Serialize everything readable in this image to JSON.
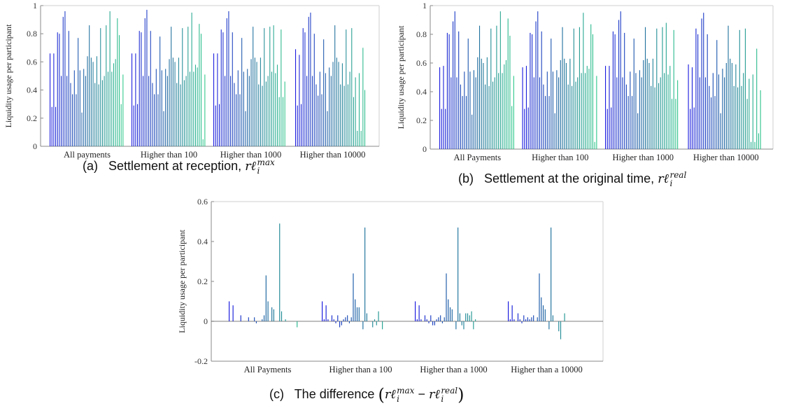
{
  "chart_data": [
    {
      "id": "a",
      "type": "bar",
      "ylabel": "Liquidity usage per participant",
      "ylim": [
        0,
        1
      ],
      "yticks": [
        0,
        0.2,
        0.4,
        0.6,
        0.8,
        1
      ],
      "ytick_labels": [
        "0",
        "0.2",
        "0.4",
        "0.6",
        "0.8",
        "1"
      ],
      "categories": [
        "All payments",
        "Higher than 100",
        "Higher than 1000",
        "Higher than 10000"
      ],
      "groups": [
        [
          0.66,
          0.28,
          0.66,
          0.28,
          0.81,
          0.8,
          0.5,
          0.92,
          0.96,
          0.5,
          0.82,
          0.45,
          0.37,
          0.54,
          0.37,
          0.77,
          0.54,
          0.24,
          0.55,
          0.5,
          0.64,
          0.86,
          0.63,
          0.6,
          0.45,
          0.64,
          0.44,
          0.84,
          0.47,
          0.5,
          0.86,
          0.53,
          0.96,
          0.53,
          0.59,
          0.62,
          0.91,
          0.79,
          0.3,
          0.51
        ],
        [
          0.66,
          0.29,
          0.66,
          0.3,
          0.82,
          0.81,
          0.5,
          0.91,
          0.97,
          0.5,
          0.82,
          0.45,
          0.37,
          0.55,
          0.37,
          0.78,
          0.54,
          0.25,
          0.55,
          0.5,
          0.62,
          0.85,
          0.63,
          0.6,
          0.45,
          0.63,
          0.44,
          0.84,
          0.47,
          0.5,
          0.85,
          0.53,
          0.95,
          0.53,
          0.58,
          0.56,
          0.87,
          0.8,
          0.05,
          0.51
        ],
        [
          0.66,
          0.29,
          0.66,
          0.3,
          0.83,
          0.81,
          0.5,
          0.91,
          0.96,
          0.5,
          0.81,
          0.45,
          0.37,
          0.54,
          0.37,
          0.77,
          0.53,
          0.25,
          0.55,
          0.5,
          0.62,
          0.85,
          0.63,
          0.6,
          0.44,
          0.63,
          0.43,
          0.84,
          0.46,
          0.5,
          0.85,
          0.53,
          0.86,
          0.52,
          0.58,
          0.35,
          0.83,
          0.35,
          0.46,
          0.0
        ],
        [
          0.69,
          0.29,
          0.65,
          0.3,
          0.84,
          0.81,
          0.5,
          0.92,
          0.95,
          0.5,
          0.8,
          0.44,
          0.36,
          0.53,
          0.37,
          0.76,
          0.52,
          0.25,
          0.56,
          0.5,
          0.6,
          0.86,
          0.63,
          0.6,
          0.44,
          0.59,
          0.43,
          0.83,
          0.44,
          0.53,
          0.84,
          0.35,
          0.49,
          0.11,
          0.52,
          0.11,
          0.7,
          0.4,
          0.0,
          0.0
        ]
      ]
    },
    {
      "id": "b",
      "type": "bar",
      "ylabel": "Liquidity usage per participant",
      "ylim": [
        0,
        1
      ],
      "yticks": [
        0,
        0.2,
        0.4,
        0.6,
        0.8,
        1
      ],
      "ytick_labels": [
        "0",
        "0.2",
        "0.4",
        "0.6",
        "0.8",
        "1"
      ],
      "categories": [
        "All Payments",
        "Higher than 100",
        "Higher than 1000",
        "Higher than 10000"
      ],
      "groups": [
        [
          0.57,
          0.28,
          0.58,
          0.28,
          0.81,
          0.8,
          0.5,
          0.89,
          0.96,
          0.5,
          0.82,
          0.45,
          0.37,
          0.54,
          0.37,
          0.77,
          0.54,
          0.24,
          0.55,
          0.5,
          0.64,
          0.86,
          0.63,
          0.6,
          0.45,
          0.64,
          0.44,
          0.84,
          0.47,
          0.5,
          0.86,
          0.53,
          0.96,
          0.53,
          0.59,
          0.62,
          0.91,
          0.79,
          0.3,
          0.51
        ],
        [
          0.57,
          0.28,
          0.58,
          0.29,
          0.81,
          0.8,
          0.5,
          0.89,
          0.96,
          0.5,
          0.82,
          0.45,
          0.37,
          0.54,
          0.37,
          0.77,
          0.54,
          0.25,
          0.55,
          0.5,
          0.62,
          0.85,
          0.63,
          0.6,
          0.45,
          0.63,
          0.44,
          0.84,
          0.47,
          0.5,
          0.85,
          0.53,
          0.95,
          0.53,
          0.58,
          0.56,
          0.87,
          0.8,
          0.05,
          0.51
        ],
        [
          0.58,
          0.28,
          0.58,
          0.29,
          0.82,
          0.8,
          0.5,
          0.9,
          0.96,
          0.5,
          0.81,
          0.45,
          0.37,
          0.54,
          0.37,
          0.77,
          0.53,
          0.25,
          0.55,
          0.5,
          0.62,
          0.85,
          0.63,
          0.6,
          0.44,
          0.63,
          0.43,
          0.84,
          0.46,
          0.5,
          0.85,
          0.53,
          0.88,
          0.52,
          0.58,
          0.35,
          0.83,
          0.35,
          0.48,
          0.0
        ],
        [
          0.59,
          0.28,
          0.57,
          0.29,
          0.84,
          0.8,
          0.5,
          0.91,
          0.95,
          0.5,
          0.8,
          0.44,
          0.36,
          0.53,
          0.37,
          0.76,
          0.52,
          0.25,
          0.56,
          0.5,
          0.6,
          0.86,
          0.63,
          0.6,
          0.44,
          0.59,
          0.43,
          0.83,
          0.44,
          0.53,
          0.84,
          0.35,
          0.49,
          0.05,
          0.52,
          0.05,
          0.7,
          0.11,
          0.41,
          0.0
        ]
      ]
    },
    {
      "id": "c",
      "type": "bar",
      "ylabel": "Liquidity usage per participant",
      "ylim": [
        -0.2,
        0.6
      ],
      "yticks": [
        -0.2,
        0,
        0.2,
        0.4,
        0.6
      ],
      "ytick_labels": [
        "-0.2",
        "0",
        "0.2",
        "0.4",
        "0.6"
      ],
      "categories": [
        "All Payments",
        "Higher than a 100",
        "Higher than a 1000",
        "Higher than a 10000"
      ],
      "groups": [
        [
          0.1,
          0.0,
          0.08,
          0.0,
          0.0,
          0.0,
          0.03,
          0.0,
          0.0,
          0.0,
          0.02,
          0.0,
          0.0,
          0.02,
          -0.01,
          0.0,
          0.0,
          0.01,
          0.03,
          0.23,
          0.1,
          0.0,
          0.07,
          0.06,
          0.0,
          0.0,
          0.49,
          0.05,
          0.0,
          0.01,
          0.0,
          0.0,
          0.0,
          0.0,
          0.0,
          -0.03,
          0.0,
          0.0,
          0.0,
          0.0
        ],
        [
          0.1,
          0.01,
          0.08,
          0.01,
          0.0,
          0.03,
          0.01,
          -0.01,
          0.03,
          -0.03,
          -0.02,
          0.01,
          0.02,
          0.03,
          -0.01,
          0.02,
          0.24,
          0.11,
          0.07,
          0.07,
          0.0,
          -0.04,
          0.47,
          0.04,
          0.0,
          0.0,
          -0.03,
          0.01,
          -0.02,
          0.05,
          0.0,
          -0.04,
          0.0,
          0.0,
          0.0,
          0.0,
          0.0,
          0.0,
          0.0,
          0.0
        ],
        [
          0.1,
          0.01,
          0.08,
          0.01,
          0.0,
          0.03,
          0.01,
          -0.01,
          0.03,
          -0.02,
          -0.02,
          0.01,
          0.02,
          0.03,
          -0.01,
          0.02,
          0.24,
          0.11,
          0.07,
          0.06,
          0.0,
          -0.04,
          0.47,
          0.04,
          -0.02,
          -0.04,
          0.04,
          0.04,
          0.03,
          0.05,
          -0.04,
          0.01,
          0.0,
          0.0,
          0.0,
          0.0,
          0.0,
          0.0,
          0.0,
          0.0
        ],
        [
          0.1,
          0.01,
          0.08,
          0.01,
          0.0,
          0.04,
          0.01,
          -0.01,
          0.03,
          0.01,
          0.02,
          0.01,
          0.02,
          0.03,
          0.0,
          0.02,
          0.24,
          0.12,
          0.08,
          0.06,
          0.0,
          -0.04,
          0.47,
          0.03,
          0.0,
          0.0,
          -0.05,
          -0.09,
          0.0,
          0.04,
          0.0,
          0.0,
          0.0,
          0.0,
          0.0,
          0.0,
          0.0,
          0.0,
          0.0,
          0.0
        ]
      ]
    }
  ],
  "colors": {
    "gradient_start": "#1a1adf",
    "gradient_mid": "#1f6aa0",
    "gradient_end": "#2ec98a",
    "axis": "#888888"
  },
  "captions": {
    "a": {
      "label": "(a)",
      "text": "Settlement at reception,",
      "r": "r",
      "ell": "ℓ",
      "sub": "i",
      "sup": "max"
    },
    "b": {
      "label": "(b)",
      "text": "Settlement at the original time,",
      "r": "r",
      "ell": "ℓ",
      "sub": "i",
      "sup": "real"
    },
    "c": {
      "label": "(c)",
      "text": "The difference",
      "open": "(",
      "r1": "r",
      "ell1": "ℓ",
      "sub1": "i",
      "sup1": "max",
      "minus": "−",
      "r2": "r",
      "ell2": "ℓ",
      "sub2": "i",
      "sup2": "real",
      "close": ")"
    }
  }
}
